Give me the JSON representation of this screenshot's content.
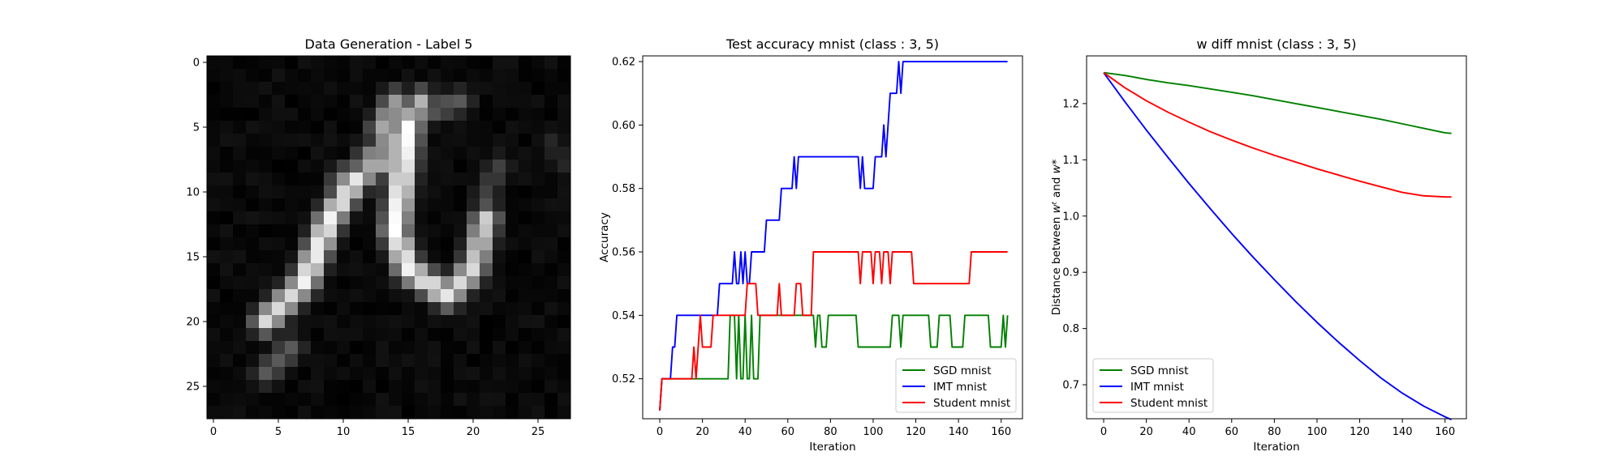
{
  "chart_data": [
    {
      "type": "heatmap",
      "title": "Data Generation - Label 5",
      "xticks": [
        "0",
        "5",
        "10",
        "15",
        "20",
        "25"
      ],
      "yticks": [
        "0",
        "5",
        "10",
        "15",
        "20",
        "25"
      ],
      "colormap": "gray",
      "size": [
        28,
        28
      ],
      "strokes": [
        {
          "from": [
            4,
            20
          ],
          "to": [
            7,
            17
          ],
          "intensity": 0.85
        },
        {
          "from": [
            7,
            17
          ],
          "to": [
            9,
            12
          ],
          "intensity": 0.95
        },
        {
          "from": [
            9,
            12
          ],
          "to": [
            11,
            9
          ],
          "intensity": 0.9
        },
        {
          "from": [
            11,
            9
          ],
          "to": [
            14,
            7
          ],
          "intensity": 0.7
        },
        {
          "from": [
            14,
            7
          ],
          "to": [
            13,
            5
          ],
          "intensity": 0.65
        },
        {
          "from": [
            13,
            5
          ],
          "to": [
            14,
            3
          ],
          "intensity": 0.6
        },
        {
          "from": [
            14,
            3
          ],
          "to": [
            14,
            6
          ],
          "intensity": 0.55
        },
        {
          "from": [
            14,
            6
          ],
          "to": [
            16,
            3
          ],
          "intensity": 0.7
        },
        {
          "from": [
            15,
            5
          ],
          "to": [
            14,
            13
          ],
          "intensity": 1.0
        },
        {
          "from": [
            14,
            13
          ],
          "to": [
            15,
            16
          ],
          "intensity": 0.95
        },
        {
          "from": [
            15,
            16
          ],
          "to": [
            18,
            18
          ],
          "intensity": 0.9
        },
        {
          "from": [
            18,
            18
          ],
          "to": [
            20,
            16
          ],
          "intensity": 0.85
        },
        {
          "from": [
            20,
            16
          ],
          "to": [
            21,
            12
          ],
          "intensity": 0.8
        },
        {
          "from": [
            12,
            7
          ],
          "to": [
            15,
            8
          ],
          "intensity": 0.5
        },
        {
          "from": [
            10,
            9
          ],
          "to": [
            13,
            8
          ],
          "intensity": 0.55
        },
        {
          "from": [
            6,
            22
          ],
          "to": [
            4,
            24
          ],
          "intensity": 0.35
        },
        {
          "from": [
            16,
            4
          ],
          "to": [
            19,
            3
          ],
          "intensity": 0.35
        },
        {
          "from": [
            21,
            10
          ],
          "to": [
            22,
            8
          ],
          "intensity": 0.25
        },
        {
          "from": [
            26,
            6
          ],
          "to": [
            27,
            8
          ],
          "intensity": 0.15
        }
      ]
    },
    {
      "type": "line",
      "title": "Test accuracy mnist (class : 3, 5)",
      "xlabel": "Iteration",
      "ylabel": "Accuracy",
      "xlim": [
        -8,
        170
      ],
      "ylim": [
        0.5074,
        0.6218
      ],
      "xticks": [
        0,
        20,
        40,
        60,
        80,
        100,
        120,
        140,
        160
      ],
      "yticks": [
        0.52,
        0.54,
        0.56,
        0.58,
        0.6,
        0.62
      ],
      "ytick_labels": [
        "0.52",
        "0.54",
        "0.56",
        "0.58",
        "0.60",
        "0.62"
      ],
      "legend": "lower-right",
      "grid": false,
      "series": [
        {
          "name": "SGD mnist",
          "color": "#008000",
          "points": [
            [
              0,
              0.51
            ],
            [
              1,
              0.52
            ],
            [
              32,
              0.52
            ],
            [
              33,
              0.54
            ],
            [
              35,
              0.54
            ],
            [
              36,
              0.52
            ],
            [
              37,
              0.54
            ],
            [
              38,
              0.52
            ],
            [
              39,
              0.52
            ],
            [
              40,
              0.54
            ],
            [
              41,
              0.52
            ],
            [
              42,
              0.52
            ],
            [
              43,
              0.54
            ],
            [
              44,
              0.52
            ],
            [
              46,
              0.52
            ],
            [
              47,
              0.54
            ],
            [
              72,
              0.54
            ],
            [
              73,
              0.53
            ],
            [
              74,
              0.54
            ],
            [
              75,
              0.54
            ],
            [
              76,
              0.53
            ],
            [
              78,
              0.53
            ],
            [
              79,
              0.54
            ],
            [
              92,
              0.54
            ],
            [
              93,
              0.53
            ],
            [
              108,
              0.53
            ],
            [
              109,
              0.54
            ],
            [
              112,
              0.54
            ],
            [
              113,
              0.53
            ],
            [
              114,
              0.54
            ],
            [
              126,
              0.54
            ],
            [
              127,
              0.53
            ],
            [
              130,
              0.53
            ],
            [
              131,
              0.54
            ],
            [
              136,
              0.54
            ],
            [
              137,
              0.53
            ],
            [
              142,
              0.53
            ],
            [
              143,
              0.54
            ],
            [
              154,
              0.54
            ],
            [
              155,
              0.53
            ],
            [
              160,
              0.53
            ],
            [
              161,
              0.54
            ],
            [
              162,
              0.53
            ],
            [
              163,
              0.54
            ]
          ]
        },
        {
          "name": "IMT mnist",
          "color": "#0000ff",
          "points": [
            [
              0,
              0.51
            ],
            [
              1,
              0.52
            ],
            [
              5,
              0.52
            ],
            [
              6,
              0.53
            ],
            [
              7,
              0.53
            ],
            [
              8,
              0.54
            ],
            [
              27,
              0.54
            ],
            [
              28,
              0.55
            ],
            [
              34,
              0.55
            ],
            [
              35,
              0.56
            ],
            [
              36,
              0.55
            ],
            [
              37,
              0.55
            ],
            [
              38,
              0.56
            ],
            [
              39,
              0.55
            ],
            [
              40,
              0.56
            ],
            [
              41,
              0.55
            ],
            [
              42,
              0.55
            ],
            [
              43,
              0.56
            ],
            [
              49,
              0.56
            ],
            [
              50,
              0.57
            ],
            [
              56,
              0.57
            ],
            [
              57,
              0.58
            ],
            [
              62,
              0.58
            ],
            [
              63,
              0.59
            ],
            [
              64,
              0.58
            ],
            [
              65,
              0.59
            ],
            [
              93,
              0.59
            ],
            [
              94,
              0.58
            ],
            [
              95,
              0.59
            ],
            [
              96,
              0.58
            ],
            [
              100,
              0.58
            ],
            [
              101,
              0.59
            ],
            [
              104,
              0.59
            ],
            [
              105,
              0.6
            ],
            [
              106,
              0.59
            ],
            [
              107,
              0.6
            ],
            [
              108,
              0.61
            ],
            [
              111,
              0.61
            ],
            [
              112,
              0.62
            ],
            [
              113,
              0.61
            ],
            [
              114,
              0.62
            ],
            [
              163,
              0.62
            ]
          ]
        },
        {
          "name": "Student mnist",
          "color": "#ff0000",
          "points": [
            [
              0,
              0.51
            ],
            [
              1,
              0.52
            ],
            [
              15,
              0.52
            ],
            [
              16,
              0.53
            ],
            [
              17,
              0.52
            ],
            [
              18,
              0.53
            ],
            [
              19,
              0.54
            ],
            [
              20,
              0.53
            ],
            [
              24,
              0.53
            ],
            [
              25,
              0.54
            ],
            [
              40,
              0.54
            ],
            [
              41,
              0.55
            ],
            [
              45,
              0.55
            ],
            [
              46,
              0.54
            ],
            [
              55,
              0.54
            ],
            [
              56,
              0.55
            ],
            [
              57,
              0.54
            ],
            [
              63,
              0.54
            ],
            [
              64,
              0.55
            ],
            [
              66,
              0.55
            ],
            [
              67,
              0.54
            ],
            [
              71,
              0.54
            ],
            [
              72,
              0.56
            ],
            [
              93,
              0.56
            ],
            [
              94,
              0.55
            ],
            [
              95,
              0.56
            ],
            [
              99,
              0.56
            ],
            [
              100,
              0.55
            ],
            [
              101,
              0.56
            ],
            [
              103,
              0.56
            ],
            [
              104,
              0.55
            ],
            [
              105,
              0.56
            ],
            [
              107,
              0.56
            ],
            [
              108,
              0.55
            ],
            [
              109,
              0.56
            ],
            [
              118,
              0.56
            ],
            [
              119,
              0.55
            ],
            [
              145,
              0.55
            ],
            [
              146,
              0.56
            ],
            [
              163,
              0.56
            ]
          ]
        }
      ]
    },
    {
      "type": "line",
      "title": "w diff mnist (class : 3, 5)",
      "xlabel": "Iteration",
      "ylabel": "Distance between w^t and w^*",
      "xlim": [
        -8,
        170
      ],
      "ylim": [
        0.6396,
        1.2848
      ],
      "xticks": [
        0,
        20,
        40,
        60,
        80,
        100,
        120,
        140,
        160
      ],
      "yticks": [
        0.7,
        0.8,
        0.9,
        1.0,
        1.1,
        1.2
      ],
      "ytick_labels": [
        "0.7",
        "0.8",
        "0.9",
        "1.0",
        "1.1",
        "1.2"
      ],
      "legend": "lower-left",
      "grid": false,
      "series": [
        {
          "name": "SGD mnist",
          "color": "#008000",
          "points": [
            [
              0,
              1.255
            ],
            [
              10,
              1.25
            ],
            [
              20,
              1.243
            ],
            [
              30,
              1.237
            ],
            [
              40,
              1.232
            ],
            [
              50,
              1.226
            ],
            [
              60,
              1.22
            ],
            [
              70,
              1.214
            ],
            [
              80,
              1.207
            ],
            [
              90,
              1.2
            ],
            [
              100,
              1.193
            ],
            [
              110,
              1.186
            ],
            [
              120,
              1.179
            ],
            [
              130,
              1.172
            ],
            [
              140,
              1.164
            ],
            [
              150,
              1.156
            ],
            [
              160,
              1.148
            ],
            [
              163,
              1.147
            ]
          ]
        },
        {
          "name": "IMT mnist",
          "color": "#0000ff",
          "points": [
            [
              0,
              1.255
            ],
            [
              10,
              1.203
            ],
            [
              20,
              1.153
            ],
            [
              30,
              1.105
            ],
            [
              40,
              1.058
            ],
            [
              50,
              1.013
            ],
            [
              60,
              0.969
            ],
            [
              70,
              0.927
            ],
            [
              80,
              0.887
            ],
            [
              90,
              0.848
            ],
            [
              100,
              0.811
            ],
            [
              110,
              0.776
            ],
            [
              120,
              0.743
            ],
            [
              130,
              0.712
            ],
            [
              140,
              0.685
            ],
            [
              150,
              0.662
            ],
            [
              160,
              0.643
            ],
            [
              163,
              0.638
            ]
          ]
        },
        {
          "name": "Student mnist",
          "color": "#ff0000",
          "points": [
            [
              0,
              1.255
            ],
            [
              10,
              1.228
            ],
            [
              20,
              1.205
            ],
            [
              30,
              1.185
            ],
            [
              40,
              1.167
            ],
            [
              50,
              1.15
            ],
            [
              60,
              1.135
            ],
            [
              70,
              1.121
            ],
            [
              80,
              1.108
            ],
            [
              90,
              1.096
            ],
            [
              100,
              1.084
            ],
            [
              110,
              1.073
            ],
            [
              120,
              1.062
            ],
            [
              130,
              1.052
            ],
            [
              140,
              1.042
            ],
            [
              150,
              1.036
            ],
            [
              160,
              1.034
            ],
            [
              163,
              1.034
            ]
          ]
        }
      ]
    }
  ]
}
